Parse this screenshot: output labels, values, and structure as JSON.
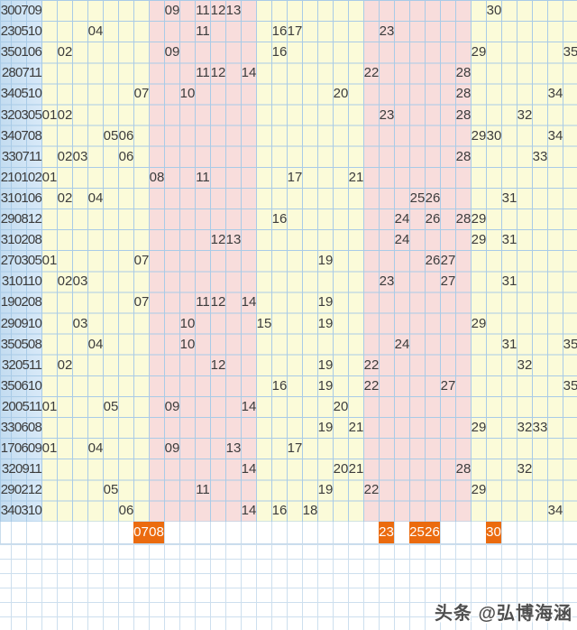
{
  "watermark": {
    "text": "头条 @弘博海涵"
  },
  "colors": {
    "band_yellow": "#fbfbd9",
    "band_pink": "#f8dddc",
    "label_column_blue": "#d1e4f4",
    "grid_line": "#a9cbe7",
    "highlight_orange": "#eb6b0f",
    "number_text": "#3c3c3c"
  },
  "chart_data": {
    "type": "table",
    "title": "Lottery front-zone number trend chart (columns 01-35)",
    "columns": {
      "start": 1,
      "end": 35
    },
    "column_bands": [
      {
        "from": 1,
        "to": 7,
        "color": "#fbfbd9"
      },
      {
        "from": 8,
        "to": 14,
        "color": "#f8dddc"
      },
      {
        "from": 15,
        "to": 21,
        "color": "#fbfbd9"
      },
      {
        "from": 22,
        "to": 28,
        "color": "#f8dddc"
      },
      {
        "from": 29,
        "to": 35,
        "color": "#fbfbd9"
      }
    ],
    "rows": [
      {
        "label": "300709",
        "numbers": [
          9,
          11,
          12,
          13,
          30
        ]
      },
      {
        "label": "230510",
        "numbers": [
          4,
          11,
          16,
          17,
          23
        ]
      },
      {
        "label": "350106",
        "numbers": [
          2,
          9,
          16,
          29,
          35
        ]
      },
      {
        "label": "280711",
        "numbers": [
          11,
          12,
          14,
          22,
          28
        ]
      },
      {
        "label": "340510",
        "numbers": [
          7,
          10,
          20,
          28,
          34
        ]
      },
      {
        "label": "320305",
        "numbers": [
          1,
          2,
          23,
          28,
          32
        ]
      },
      {
        "label": "340708",
        "numbers": [
          5,
          6,
          29,
          30,
          34
        ]
      },
      {
        "label": "330711",
        "numbers": [
          2,
          3,
          6,
          28,
          33
        ]
      },
      {
        "label": "210102",
        "numbers": [
          1,
          8,
          11,
          17,
          21
        ]
      },
      {
        "label": "310106",
        "numbers": [
          2,
          4,
          25,
          26,
          31
        ]
      },
      {
        "label": "290812",
        "numbers": [
          16,
          24,
          26,
          28,
          29
        ]
      },
      {
        "label": "310208",
        "numbers": [
          12,
          13,
          24,
          29,
          31
        ]
      },
      {
        "label": "270305",
        "numbers": [
          1,
          7,
          19,
          26,
          27
        ]
      },
      {
        "label": "310110",
        "numbers": [
          2,
          3,
          23,
          27,
          31
        ]
      },
      {
        "label": "190208",
        "numbers": [
          7,
          11,
          12,
          14,
          19
        ]
      },
      {
        "label": "290910",
        "numbers": [
          3,
          10,
          15,
          19,
          29
        ]
      },
      {
        "label": "350508",
        "numbers": [
          4,
          10,
          24,
          31,
          35
        ]
      },
      {
        "label": "320511",
        "numbers": [
          2,
          12,
          19,
          22,
          32
        ]
      },
      {
        "label": "350610",
        "numbers": [
          16,
          19,
          22,
          27,
          35
        ]
      },
      {
        "label": "200511",
        "numbers": [
          1,
          5,
          9,
          14,
          20
        ]
      },
      {
        "label": "330608",
        "numbers": [
          19,
          21,
          29,
          32,
          33
        ]
      },
      {
        "label": "170609",
        "numbers": [
          1,
          4,
          9,
          13,
          17
        ]
      },
      {
        "label": "320911",
        "numbers": [
          14,
          20,
          21,
          28,
          32
        ]
      },
      {
        "label": "290212",
        "numbers": [
          5,
          11,
          19,
          22,
          29
        ]
      },
      {
        "label": "340310",
        "numbers": [
          6,
          14,
          16,
          18,
          34
        ]
      }
    ],
    "highlight_row": {
      "numbers": [
        7,
        8,
        23,
        25,
        26,
        30
      ]
    },
    "layout_hints": {
      "grid": true,
      "label_column_cut_off_left": true
    }
  }
}
